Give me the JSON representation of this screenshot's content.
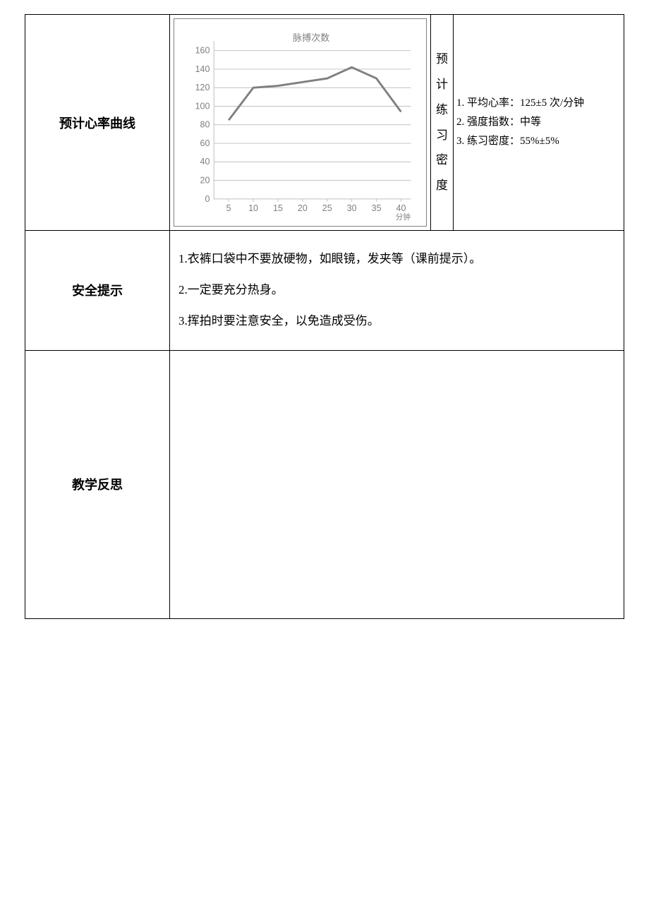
{
  "row1": {
    "label": "预计心率曲线",
    "vert_label": "预计练习密度",
    "chart": {
      "type": "line",
      "title": "脉搏次数",
      "x_unit": "分钟",
      "xlim": [
        2,
        42
      ],
      "ylim": [
        0,
        170
      ],
      "ytick_step": 20,
      "yticks": [
        0,
        20,
        40,
        60,
        80,
        100,
        120,
        140,
        160
      ],
      "xtick_step": 5,
      "xticks": [
        5,
        10,
        15,
        20,
        25,
        30,
        35,
        40
      ],
      "x_values": [
        5,
        10,
        15,
        20,
        25,
        30,
        35,
        40
      ],
      "y_values": [
        85,
        120,
        122,
        126,
        130,
        142,
        130,
        94
      ],
      "line_color": "#7f7f7f",
      "line_width": 3,
      "grid_color": "#bfbfbf",
      "background_color": "#ffffff",
      "label_fontsize": 13,
      "label_color": "#7f7f7f",
      "title_fontsize": 13,
      "border_color": "#808080"
    },
    "metrics": {
      "m1": "1. 平均心率：125±5 次/分钟",
      "m2": "2. 强度指数：中等",
      "m3": "3. 练习密度：55%±5%"
    }
  },
  "row2": {
    "label": "安全提示",
    "items": {
      "i1": "1.衣裤口袋中不要放硬物，如眼镜，发夹等（课前提示）。",
      "i2": "2.一定要充分热身。",
      "i3": "3.挥拍时要注意安全，以免造成受伤。"
    }
  },
  "row3": {
    "label": "教学反思"
  }
}
